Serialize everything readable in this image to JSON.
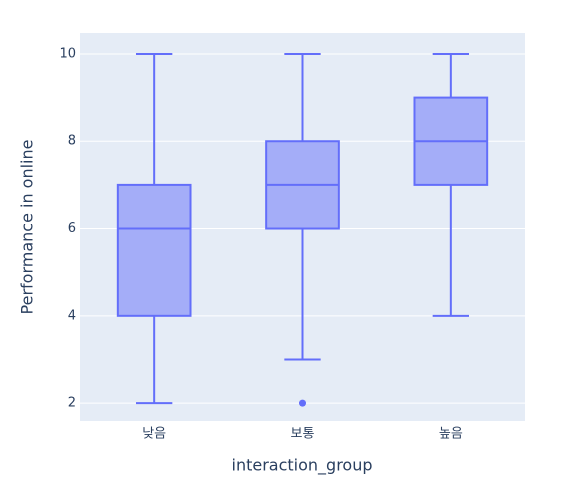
{
  "chart_data": {
    "type": "box",
    "x_label": "interaction_group",
    "y_label": "Performance in online",
    "categories": [
      "낮음",
      "보통",
      "높음"
    ],
    "color": "#636efa",
    "boxes": [
      {
        "min": 2,
        "q1": 4,
        "median": 6,
        "q3": 7,
        "max": 10
      },
      {
        "min": 3,
        "q1": 6,
        "median": 7,
        "q3": 8,
        "max": 10,
        "outliers": [
          2
        ]
      },
      {
        "min": 4,
        "q1": 7,
        "median": 8,
        "q3": 9,
        "max": 10
      }
    ],
    "ylim": [
      1.59,
      10.48
    ],
    "yticks": [
      2,
      4,
      6,
      8,
      10
    ],
    "grid": true
  }
}
